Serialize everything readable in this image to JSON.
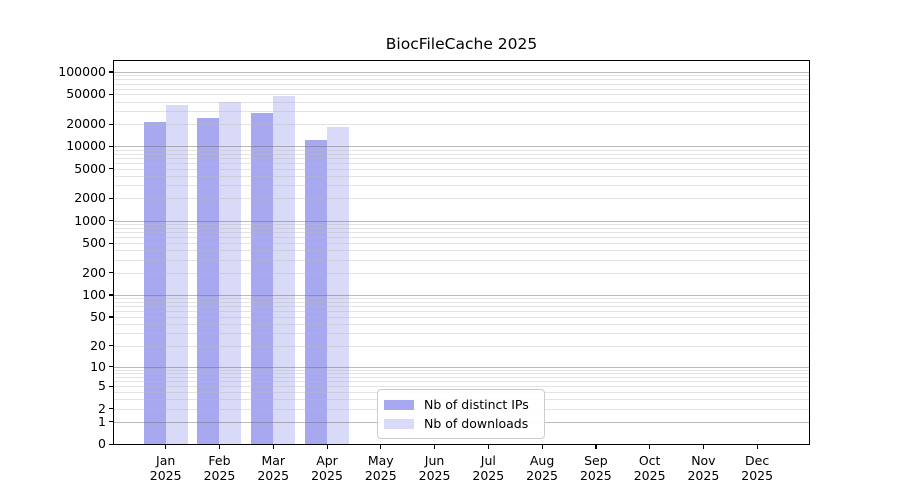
{
  "title": "BiocFileCache 2025",
  "legend": {
    "items": [
      {
        "label": "Nb of distinct IPs",
        "color": "#a8a8f0"
      },
      {
        "label": "Nb of downloads",
        "color": "#d9d9f8"
      }
    ]
  },
  "chart_data": {
    "type": "bar",
    "title": "BiocFileCache 2025",
    "categories": [
      "Jan",
      "Feb",
      "Mar",
      "Apr",
      "May",
      "Jun",
      "Jul",
      "Aug",
      "Sep",
      "Oct",
      "Nov",
      "Dec"
    ],
    "category_year": "2025",
    "series": [
      {
        "name": "Nb of distinct IPs",
        "color": "#a8a8f0",
        "values": [
          21500,
          24000,
          28000,
          12300,
          null,
          null,
          null,
          null,
          null,
          null,
          null,
          null
        ]
      },
      {
        "name": "Nb of downloads",
        "color": "#d9d9f8",
        "values": [
          36000,
          40000,
          47000,
          18500,
          null,
          null,
          null,
          null,
          null,
          null,
          null,
          null
        ]
      }
    ],
    "y_scale": "log10(1+value)",
    "y_ticks": [
      0,
      1,
      2,
      5,
      10,
      20,
      50,
      100,
      200,
      500,
      1000,
      2000,
      5000,
      10000,
      20000,
      50000,
      100000
    ],
    "ylim": [
      0,
      146000
    ],
    "grid": {
      "major_lines": "powers of 10",
      "minor_lines": "2-9 per decade",
      "drawn_over_bars": true
    },
    "grid_color_major": "#b3b3b3",
    "grid_color_minor": "#e7e7e7",
    "axis_color": "#000000",
    "legend_position": "inside lower center"
  }
}
